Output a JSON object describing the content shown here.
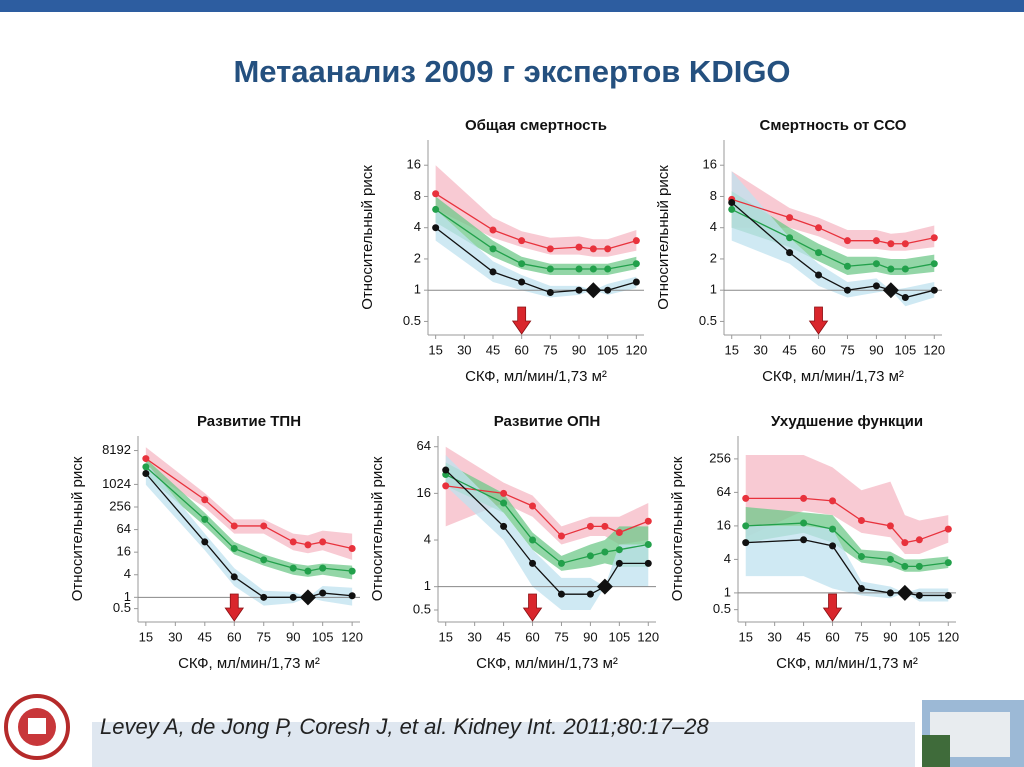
{
  "header": {
    "title": "Метаанализ 2009 г экспертов KDIGO"
  },
  "citation": "Levey A, de Jong P, Coresh J, et al. Kidney Int. 2011;80:17–28",
  "chart_data": [
    {
      "type": "line",
      "title": "Общая смертность",
      "x_label": "СКФ, мл/мин/1,73 м²",
      "y_label": "Относительный риск",
      "yscale": "log",
      "ylim": [
        0.37,
        28
      ],
      "yticks": [
        0.5,
        1,
        2,
        4,
        8,
        16
      ],
      "xlim": [
        11,
        124
      ],
      "xticks": [
        15,
        30,
        45,
        60,
        75,
        90,
        105,
        120
      ],
      "reference_y": 1,
      "reference_x": 97.5,
      "arrow_x": 60,
      "x": [
        15,
        45,
        60,
        75,
        90,
        97.5,
        105,
        120
      ],
      "series": [
        {
          "color": "#e8323c",
          "band_color": "#f5b8c4",
          "values": [
            8.5,
            3.8,
            3,
            2.5,
            2.6,
            2.5,
            2.5,
            3
          ],
          "low": [
            6,
            3.2,
            2.6,
            2.2,
            2.2,
            2.1,
            2.1,
            2.4
          ],
          "high": [
            16,
            5,
            3.7,
            3.2,
            3.3,
            3.1,
            3.1,
            3.8
          ]
        },
        {
          "color": "#22a04b",
          "band_color": "#6fc88a",
          "values": [
            6,
            2.5,
            1.8,
            1.6,
            1.6,
            1.6,
            1.6,
            1.8
          ],
          "low": [
            4.5,
            2.1,
            1.6,
            1.4,
            1.4,
            1.4,
            1.4,
            1.6
          ],
          "high": [
            8,
            3,
            2.1,
            1.8,
            1.8,
            1.8,
            1.8,
            2.1
          ]
        },
        {
          "color": "#111111",
          "band_color": "#bfe2ef",
          "values": [
            4,
            1.5,
            1.2,
            0.95,
            1,
            1,
            1,
            1.2
          ],
          "low": [
            3,
            1.2,
            1,
            0.85,
            0.9,
            1,
            0.9,
            1.05
          ],
          "high": [
            6,
            1.9,
            1.4,
            1.1,
            1.1,
            1,
            1.15,
            1.35
          ]
        }
      ]
    },
    {
      "type": "line",
      "title": "Смертность от ССО",
      "x_label": "СКФ, мл/мин/1,73 м²",
      "y_label": "Относительный риск",
      "yscale": "log",
      "ylim": [
        0.37,
        28
      ],
      "yticks": [
        0.5,
        1,
        2,
        4,
        8,
        16
      ],
      "xlim": [
        11,
        124
      ],
      "xticks": [
        15,
        30,
        45,
        60,
        75,
        90,
        105,
        120
      ],
      "reference_y": 1,
      "reference_x": 97.5,
      "arrow_x": 60,
      "x": [
        15,
        45,
        60,
        75,
        90,
        97.5,
        105,
        120
      ],
      "series": [
        {
          "color": "#e8323c",
          "band_color": "#f5b8c4",
          "values": [
            7.5,
            5,
            4,
            3,
            3,
            2.8,
            2.8,
            3.2
          ],
          "low": [
            4,
            4,
            3.3,
            2.5,
            2.5,
            2.4,
            2.4,
            2.6
          ],
          "high": [
            14,
            6.2,
            5,
            3.8,
            3.8,
            3.5,
            3.6,
            4.2
          ]
        },
        {
          "color": "#22a04b",
          "band_color": "#6fc88a",
          "values": [
            6,
            3.2,
            2.3,
            1.7,
            1.8,
            1.6,
            1.6,
            1.8
          ],
          "low": [
            4,
            2.6,
            1.9,
            1.4,
            1.5,
            1.4,
            1.4,
            1.5
          ],
          "high": [
            9,
            4,
            2.8,
            2.1,
            2.1,
            2,
            2,
            2.2
          ]
        },
        {
          "color": "#111111",
          "band_color": "#bfe2ef",
          "values": [
            7,
            2.3,
            1.4,
            1,
            1.1,
            1,
            0.85,
            1
          ],
          "low": [
            3,
            1.8,
            1.1,
            0.85,
            0.95,
            1,
            0.7,
            0.85
          ],
          "high": [
            14,
            3.2,
            1.8,
            1.2,
            1.3,
            1,
            1.05,
            1.2
          ]
        }
      ]
    },
    {
      "type": "line",
      "title": "Развитие ТПН",
      "x_label": "СКФ, мл/мин/1,73 м²",
      "y_label": "Относительный риск",
      "yscale": "log",
      "ylim": [
        0.22,
        20000
      ],
      "yticks": [
        0.5,
        1,
        4,
        16,
        64,
        256,
        1024,
        8192
      ],
      "xlim": [
        11,
        124
      ],
      "xticks": [
        15,
        30,
        45,
        60,
        75,
        90,
        105,
        120
      ],
      "reference_y": 1,
      "reference_x": 97.5,
      "arrow_x": 60,
      "x": [
        15,
        45,
        60,
        75,
        90,
        97.5,
        105,
        120
      ],
      "series": [
        {
          "color": "#e8323c",
          "band_color": "#f5b8c4",
          "values": [
            5000,
            400,
            80,
            80,
            30,
            25,
            30,
            20
          ],
          "low": [
            2500,
            250,
            50,
            50,
            18,
            15,
            18,
            10
          ],
          "high": [
            10000,
            600,
            120,
            120,
            50,
            45,
            60,
            50
          ]
        },
        {
          "color": "#22a04b",
          "band_color": "#6fc88a",
          "values": [
            3000,
            120,
            20,
            10,
            6,
            5,
            6,
            5
          ],
          "low": [
            1800,
            80,
            14,
            7,
            4,
            3.5,
            4,
            3
          ],
          "high": [
            5000,
            180,
            30,
            14,
            8,
            7,
            8,
            7
          ]
        },
        {
          "color": "#111111",
          "band_color": "#bfe2ef",
          "values": [
            2000,
            30,
            3.5,
            1,
            1,
            1,
            1.3,
            1.1
          ],
          "low": [
            1000,
            18,
            2,
            0.6,
            0.7,
            1,
            0.8,
            0.6
          ],
          "high": [
            4000,
            50,
            6,
            1.5,
            1.4,
            1,
            2,
            1.8
          ]
        }
      ]
    },
    {
      "type": "line",
      "title": "Развитие ОПН",
      "x_label": "СКФ, мл/мин/1,73 м²",
      "y_label": "Относительный риск",
      "yscale": "log",
      "ylim": [
        0.35,
        88
      ],
      "yticks": [
        0.5,
        1,
        4,
        16,
        64
      ],
      "xlim": [
        11,
        124
      ],
      "xticks": [
        15,
        30,
        45,
        60,
        75,
        90,
        105,
        120
      ],
      "reference_y": 1,
      "reference_x": 97.5,
      "arrow_x": 60,
      "x": [
        15,
        45,
        60,
        75,
        90,
        97.5,
        105,
        120
      ],
      "series": [
        {
          "color": "#e8323c",
          "band_color": "#f5b8c4",
          "values": [
            20,
            16,
            11,
            4.5,
            6,
            6,
            5,
            7
          ],
          "low": [
            6,
            12,
            8,
            3.5,
            4.5,
            4.5,
            3.5,
            4
          ],
          "high": [
            64,
            22,
            15,
            6,
            8,
            8,
            8,
            12
          ]
        },
        {
          "color": "#22a04b",
          "band_color": "#6fc88a",
          "values": [
            28,
            12,
            4,
            2,
            2.5,
            2.8,
            3,
            3.5
          ],
          "low": [
            20,
            9,
            3,
            1.6,
            1.8,
            2,
            1.8,
            1.8
          ],
          "high": [
            40,
            16,
            5,
            2.5,
            3.5,
            4,
            6,
            6
          ]
        },
        {
          "color": "#111111",
          "band_color": "#bfe2ef",
          "values": [
            32,
            6,
            2,
            0.8,
            0.8,
            1,
            2,
            2
          ],
          "low": [
            20,
            4,
            1,
            0.5,
            0.5,
            1,
            1,
            1
          ],
          "high": [
            50,
            9,
            3,
            1.3,
            1.3,
            1,
            3.5,
            3.5
          ]
        }
      ]
    },
    {
      "type": "line",
      "title": "Ухудшение функции",
      "x_label": "СКФ, мл/мин/1,73 м²",
      "y_label": "Относительный риск",
      "yscale": "log",
      "ylim": [
        0.3,
        660
      ],
      "yticks": [
        0.5,
        1,
        4,
        16,
        64,
        256
      ],
      "xlim": [
        11,
        124
      ],
      "xticks": [
        15,
        30,
        45,
        60,
        75,
        90,
        105,
        120
      ],
      "reference_y": 1,
      "reference_x": 97.5,
      "arrow_x": 60,
      "x": [
        15,
        45,
        60,
        75,
        90,
        97.5,
        105,
        120
      ],
      "series": [
        {
          "color": "#e8323c",
          "band_color": "#f5b8c4",
          "values": [
            50,
            50,
            45,
            20,
            16,
            8,
            9,
            14
          ],
          "low": [
            10,
            30,
            25,
            12,
            10,
            5,
            5,
            8
          ],
          "high": [
            300,
            300,
            180,
            70,
            100,
            25,
            20,
            25
          ]
        },
        {
          "color": "#22a04b",
          "band_color": "#6fc88a",
          "values": [
            16,
            18,
            14,
            4.5,
            4,
            3,
            3,
            3.5
          ],
          "low": [
            8,
            12,
            8,
            3.5,
            3,
            2.4,
            2.4,
            2.8
          ],
          "high": [
            35,
            28,
            25,
            6,
            5.5,
            4,
            4,
            4.5
          ]
        },
        {
          "color": "#111111",
          "band_color": "#bfe2ef",
          "values": [
            8,
            9,
            7,
            1.2,
            1,
            1,
            0.9,
            0.9
          ],
          "low": [
            2,
            2,
            1.2,
            0.9,
            0.8,
            1,
            0.7,
            0.7
          ],
          "high": [
            16,
            16,
            14,
            1.6,
            1.3,
            1,
            1.2,
            1.2
          ]
        }
      ]
    }
  ]
}
